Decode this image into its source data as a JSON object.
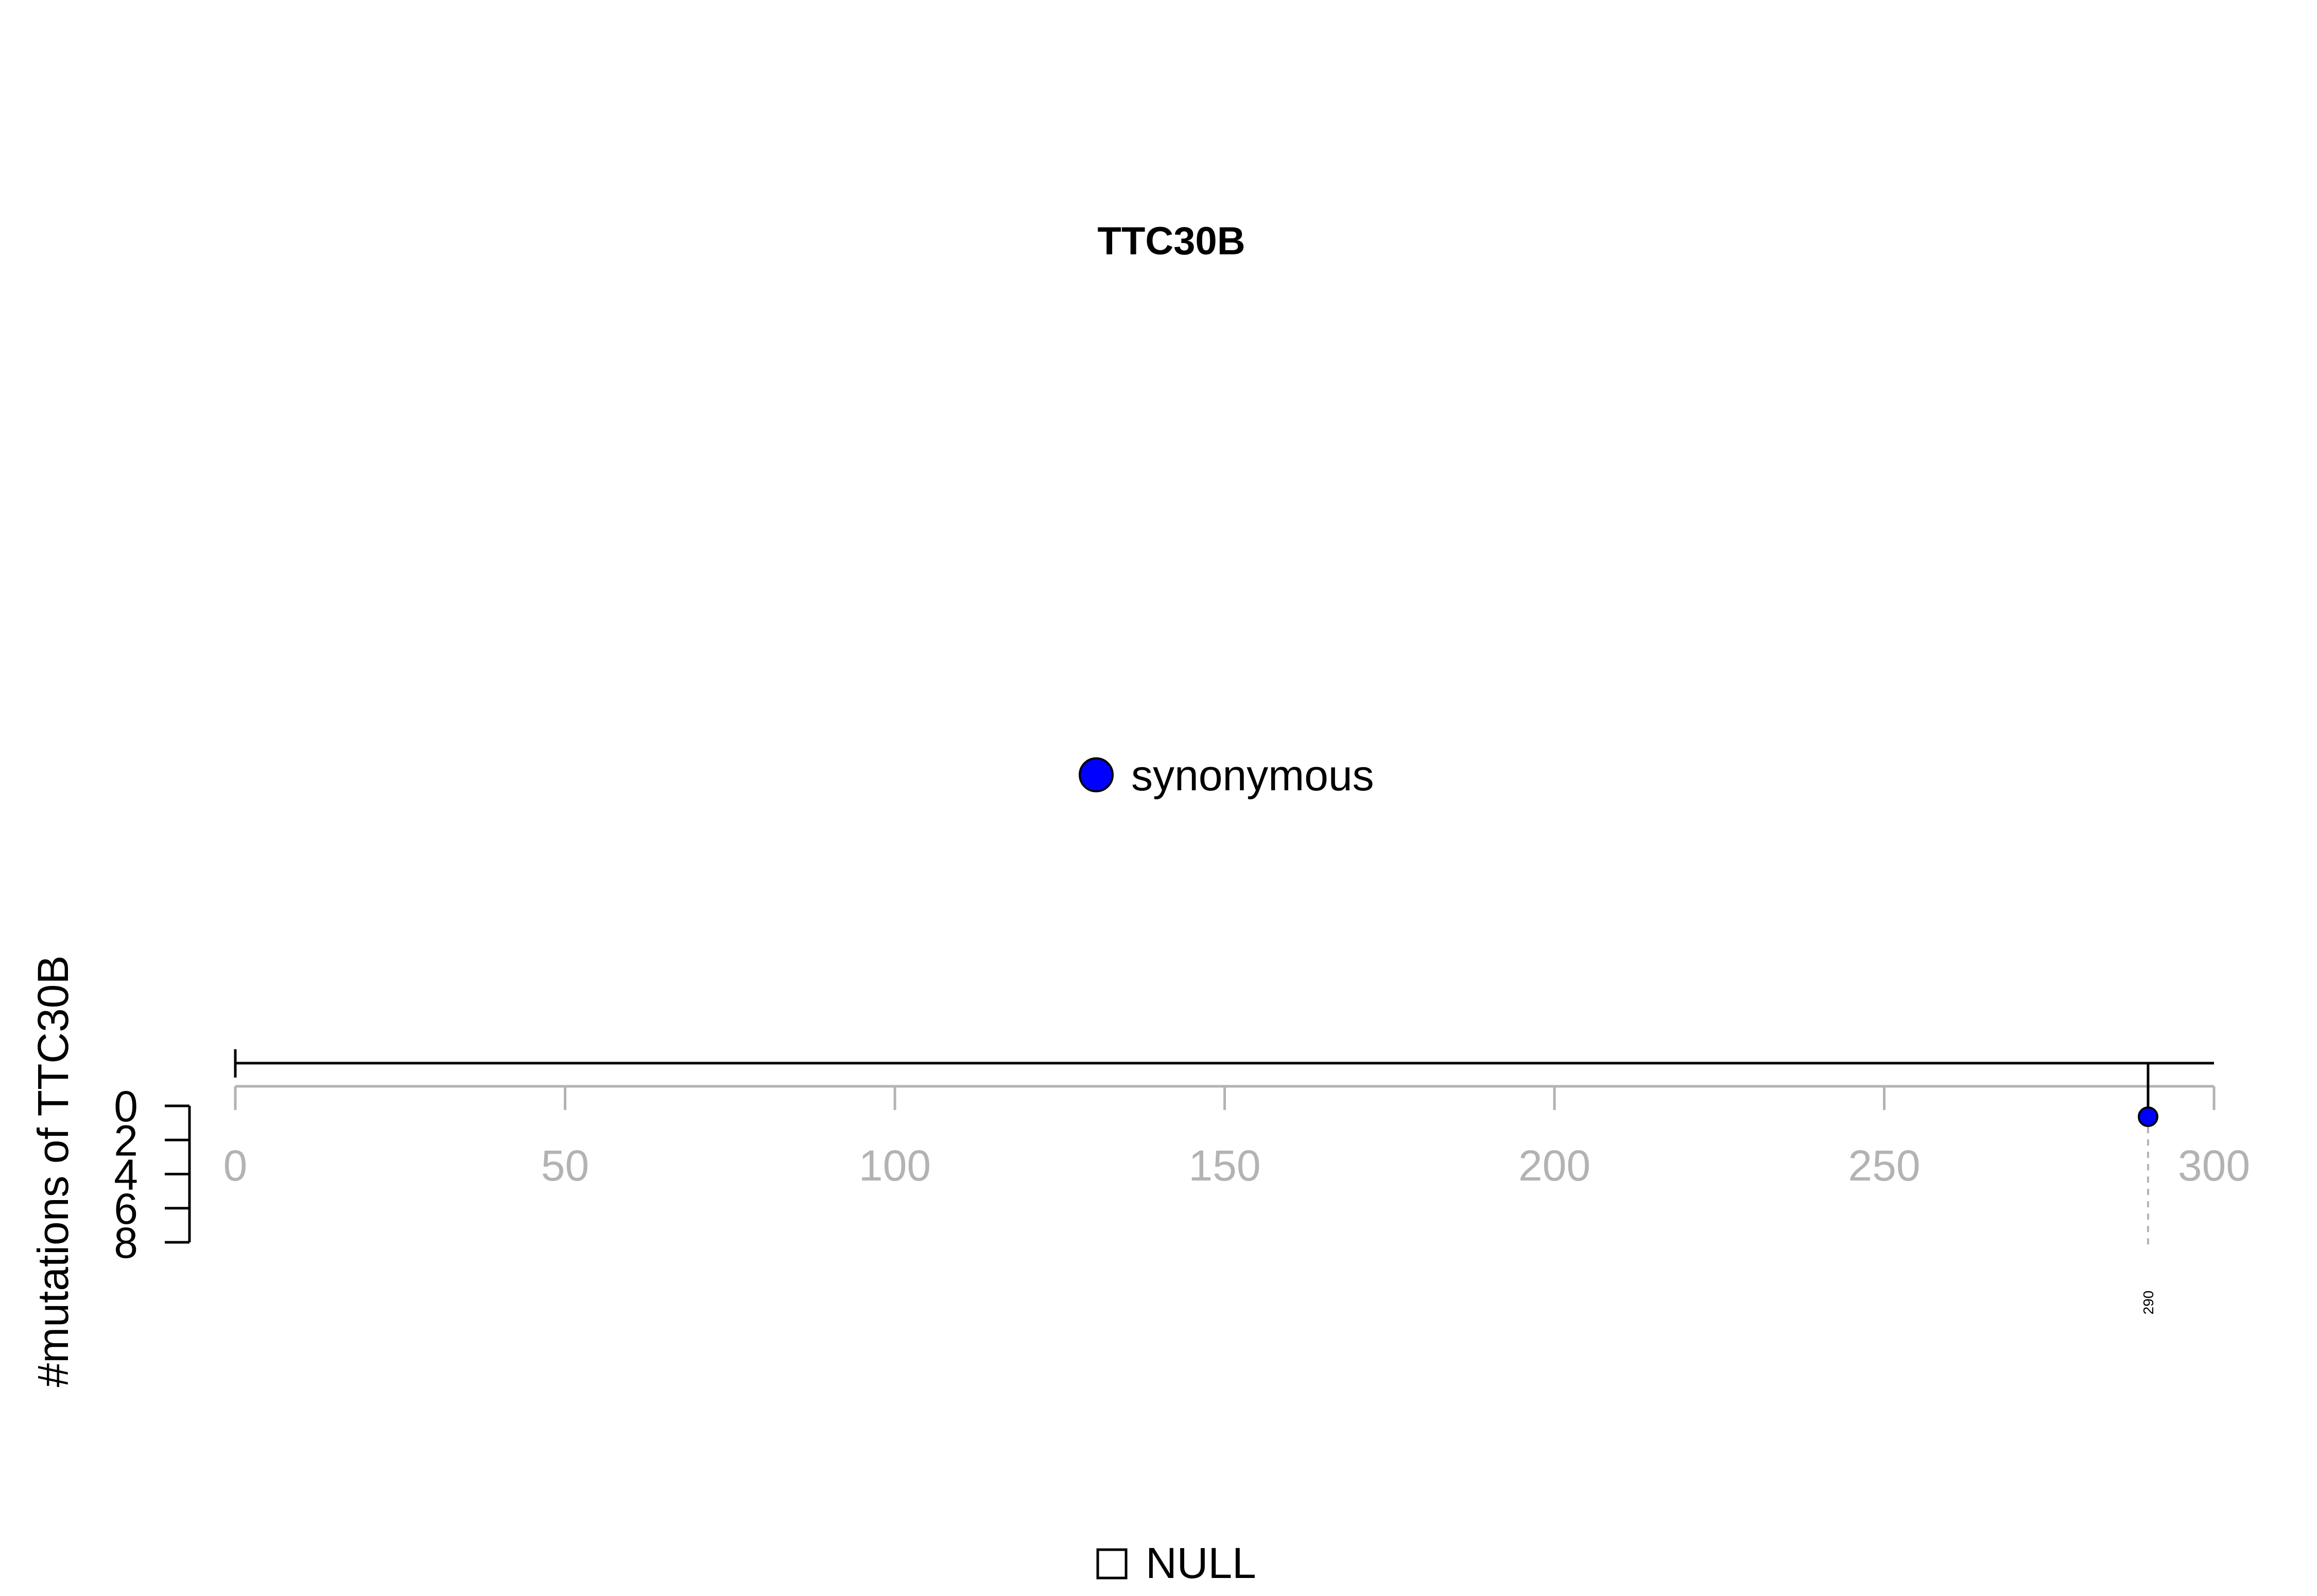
{
  "chart_data": {
    "type": "lollipop",
    "title": "TTC30B",
    "ylabel": "#mutations of TTC30B",
    "xlim": [
      0,
      300
    ],
    "x_ticks": [
      0,
      50,
      100,
      150,
      200,
      250,
      300
    ],
    "y_ticks": [
      0,
      2,
      4,
      6,
      8
    ],
    "ylim": [
      0,
      8
    ],
    "protein_length": 300,
    "mutations": [
      {
        "position": 290,
        "count": 1,
        "type": "synonymous",
        "label": "290"
      }
    ],
    "legend": [
      {
        "label": "synonymous",
        "color": "#0000ff"
      }
    ],
    "domain_legend": [
      {
        "label": "NULL"
      }
    ]
  }
}
